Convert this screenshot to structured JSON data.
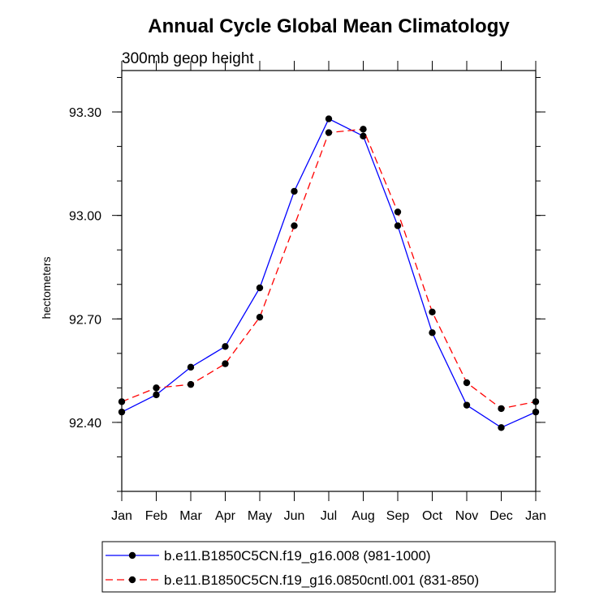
{
  "chart_data": {
    "type": "line",
    "title": "Annual Cycle Global Mean Climatology",
    "subtitle": "300mb geop height",
    "xlabel": "",
    "ylabel": "hectometers",
    "categories": [
      "Jan",
      "Feb",
      "Mar",
      "Apr",
      "May",
      "Jun",
      "Jul",
      "Aug",
      "Sep",
      "Oct",
      "Nov",
      "Dec",
      "Jan"
    ],
    "ylim": [
      92.2,
      93.42
    ],
    "yticks": [
      92.4,
      92.7,
      93.0,
      93.3
    ],
    "ytick_labels": [
      "92.40",
      "92.70",
      "93.00",
      "93.30"
    ],
    "grid": false,
    "legend_position": "bottom",
    "series": [
      {
        "name": "b.e11.B1850C5CN.f19_g16.008 (981-1000)",
        "color": "#0000ff",
        "dash": "solid",
        "marker": "filled-circle",
        "values": [
          92.43,
          92.48,
          92.56,
          92.62,
          92.79,
          93.07,
          93.28,
          93.23,
          92.97,
          92.66,
          92.45,
          92.385,
          92.43
        ]
      },
      {
        "name": "b.e11.B1850C5CN.f19_g16.0850cntl.001 (831-850)",
        "color": "#ff0000",
        "dash": "dashed",
        "marker": "filled-circle",
        "values": [
          92.46,
          92.5,
          92.51,
          92.57,
          92.705,
          92.97,
          93.24,
          93.25,
          93.01,
          92.72,
          92.515,
          92.44,
          92.46
        ]
      }
    ]
  }
}
